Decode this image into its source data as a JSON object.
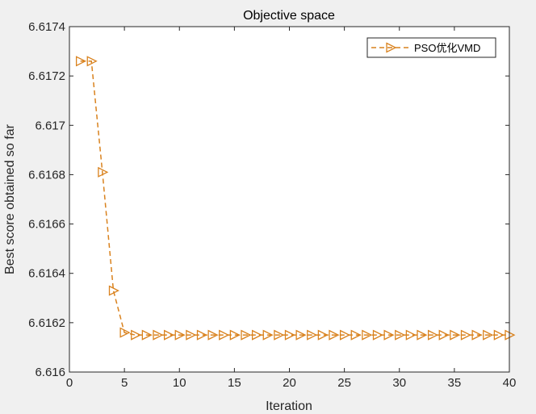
{
  "chart_data": {
    "type": "line",
    "title": "Objective space",
    "xlabel": "Iteration",
    "ylabel": "Best score obtained so far",
    "xlim": [
      0,
      40
    ],
    "ylim": [
      6.616,
      6.6174
    ],
    "xticks": [
      0,
      5,
      10,
      15,
      20,
      25,
      30,
      35,
      40
    ],
    "xtick_labels": [
      "0",
      "5",
      "10",
      "15",
      "20",
      "25",
      "30",
      "35",
      "40"
    ],
    "yticks": [
      6.616,
      6.6162,
      6.6164,
      6.6166,
      6.6168,
      6.617,
      6.6172,
      6.6174
    ],
    "ytick_labels": [
      "6.616",
      "6.6162",
      "6.6164",
      "6.6166",
      "6.6168",
      "6.617",
      "6.6172",
      "6.6174"
    ],
    "grid": false,
    "legend_position": "top-right",
    "series": [
      {
        "name": "PSO优化VMD",
        "color": "#D9821E",
        "line_style": "dashed",
        "marker": "triangle-right",
        "x": [
          1,
          2,
          3,
          4,
          5,
          6,
          7,
          8,
          9,
          10,
          11,
          12,
          13,
          14,
          15,
          16,
          17,
          18,
          19,
          20,
          21,
          22,
          23,
          24,
          25,
          26,
          27,
          28,
          29,
          30,
          31,
          32,
          33,
          34,
          35,
          36,
          37,
          38,
          39,
          40
        ],
        "y": [
          6.61726,
          6.61726,
          6.61681,
          6.61633,
          6.61616,
          6.61615,
          6.61615,
          6.61615,
          6.61615,
          6.61615,
          6.61615,
          6.61615,
          6.61615,
          6.61615,
          6.61615,
          6.61615,
          6.61615,
          6.61615,
          6.61615,
          6.61615,
          6.61615,
          6.61615,
          6.61615,
          6.61615,
          6.61615,
          6.61615,
          6.61615,
          6.61615,
          6.61615,
          6.61615,
          6.61615,
          6.61615,
          6.61615,
          6.61615,
          6.61615,
          6.61615,
          6.61615,
          6.61615,
          6.61615,
          6.61615
        ]
      }
    ]
  }
}
